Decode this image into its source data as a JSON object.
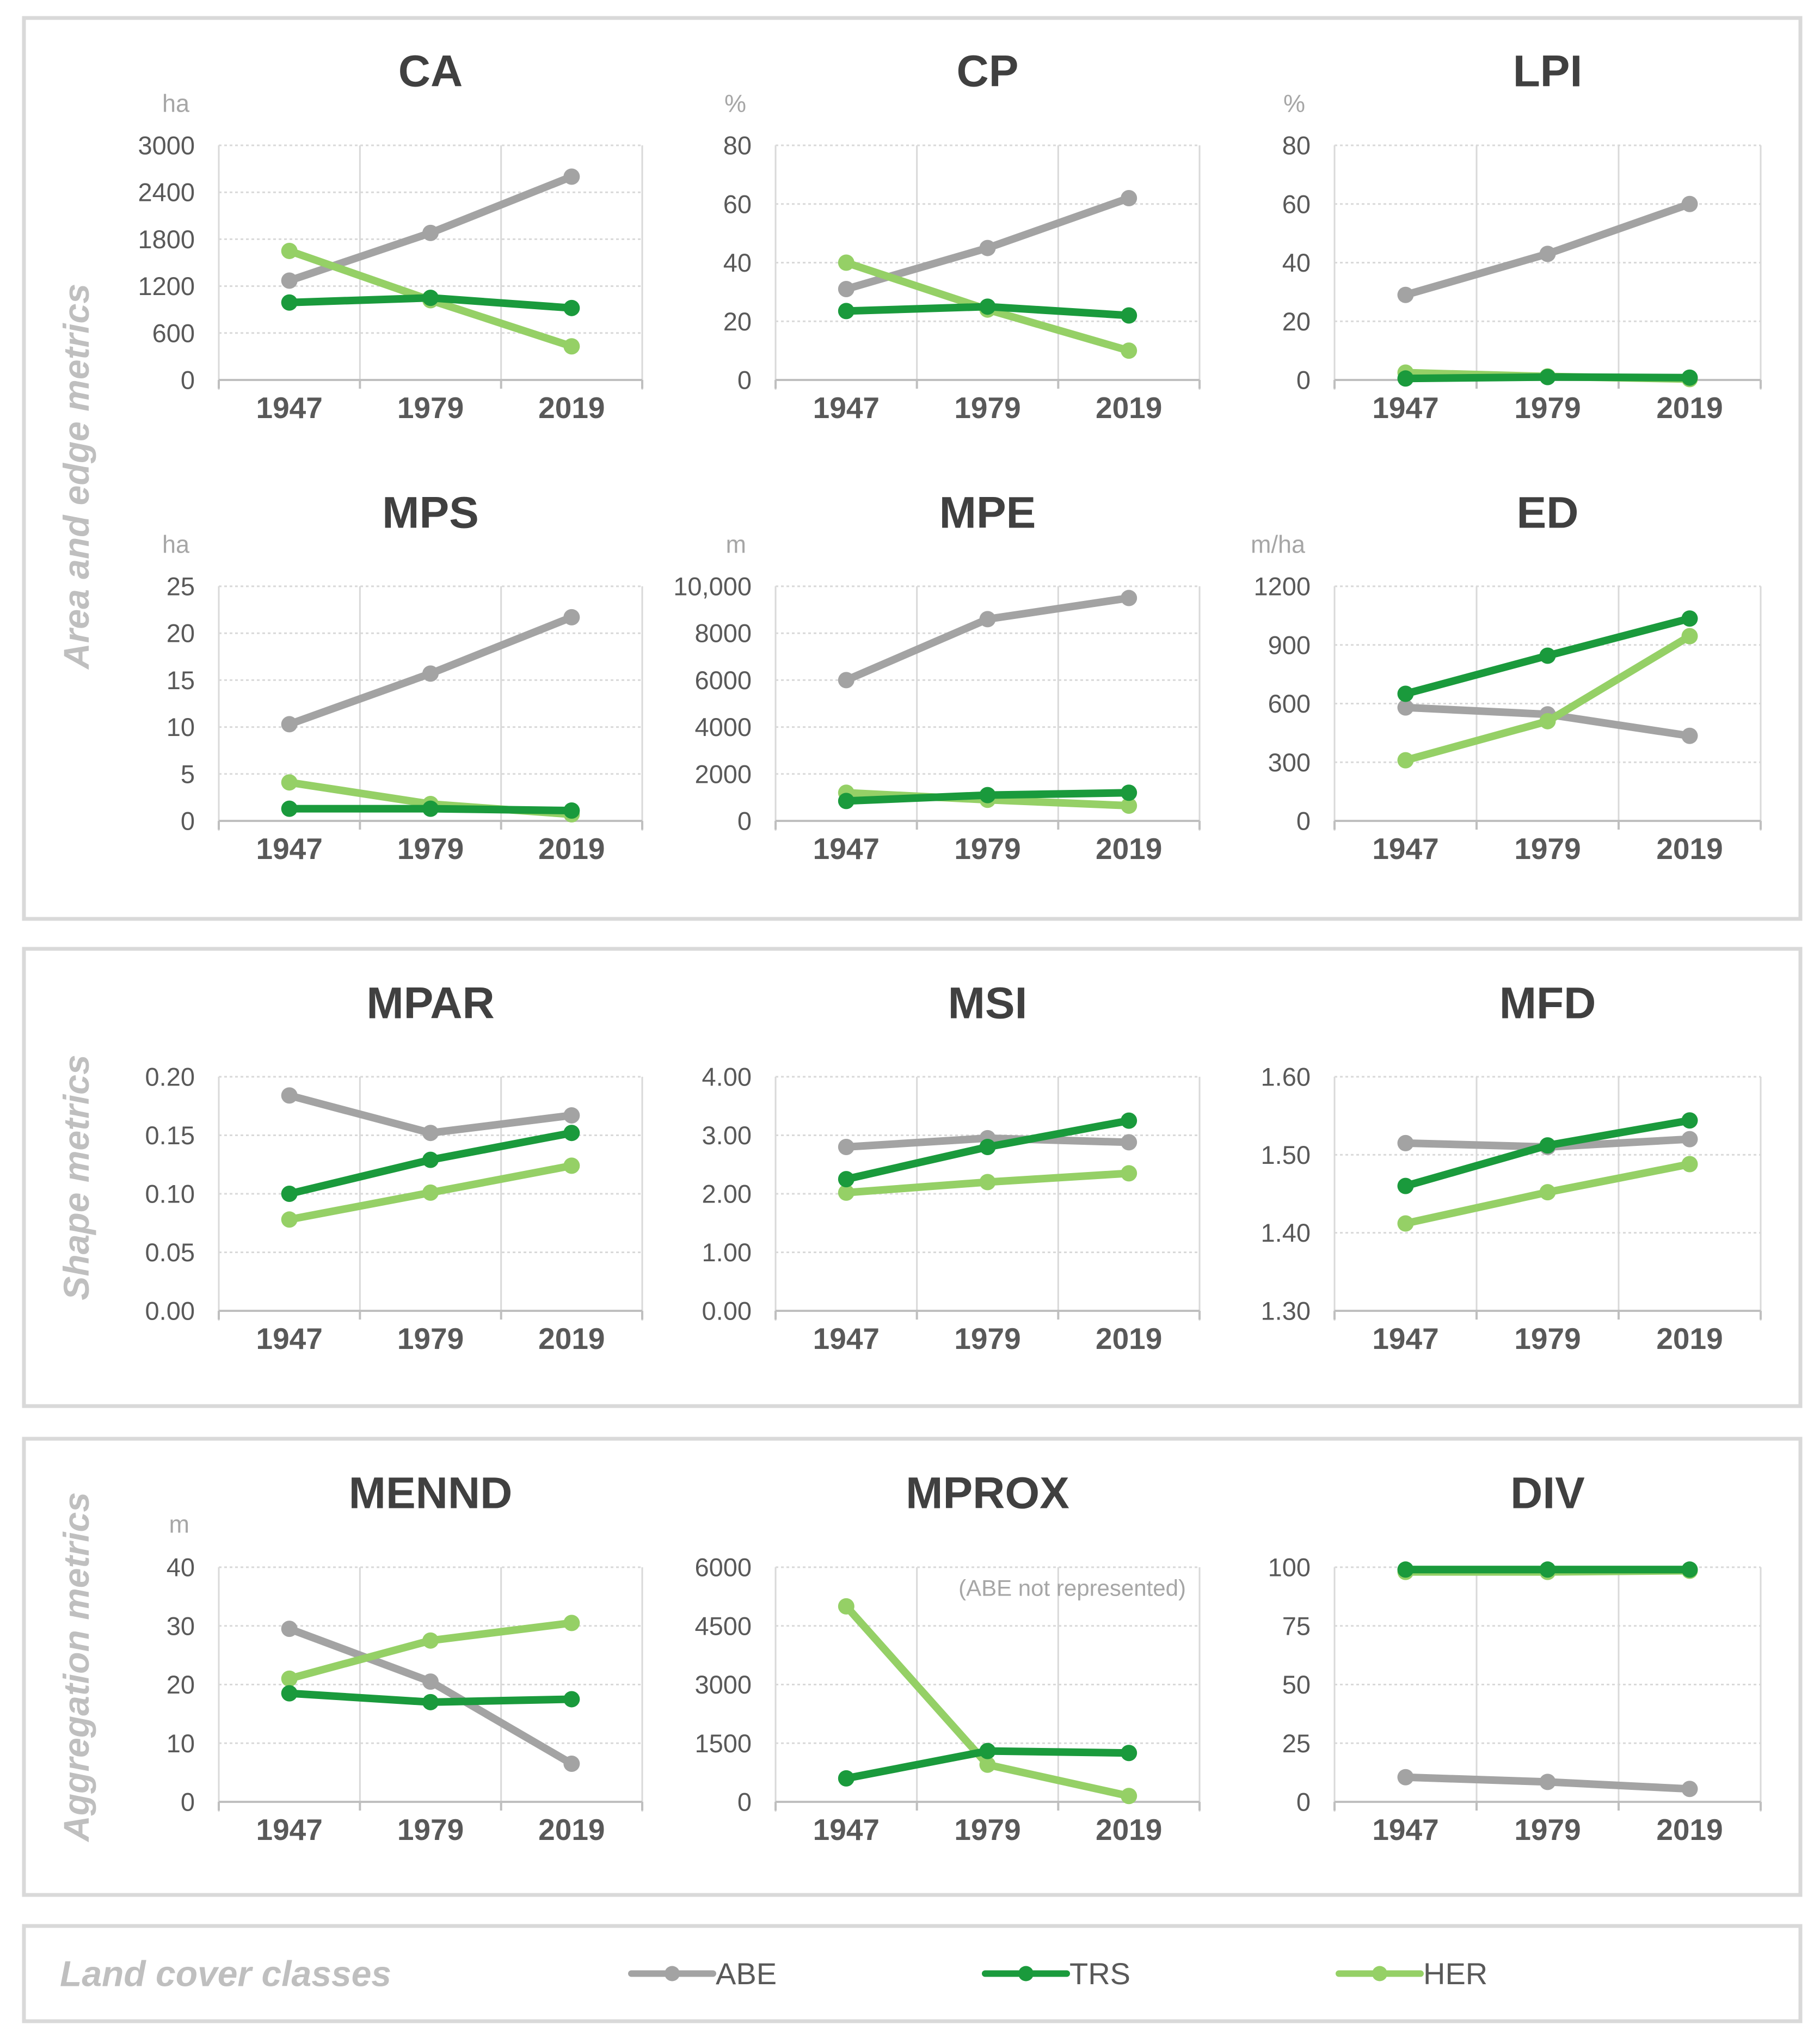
{
  "colors": {
    "ABE": "#a3a3a3",
    "TRS": "#1a9a3c",
    "HER": "#95d066",
    "grid": "#d9d9d9",
    "axis": "#bfbfbf",
    "text": "#595959",
    "title": "#404040",
    "unit": "#a6a6a6",
    "section": "#bfbfbf",
    "panel_border": "#d9d9d9"
  },
  "sections": [
    {
      "label": "Area and edge metrics"
    },
    {
      "label": "Shape metrics"
    },
    {
      "label": "Aggregation metrics"
    }
  ],
  "legend": {
    "title": "Land cover classes",
    "items": [
      {
        "key": "ABE",
        "label": "ABE"
      },
      {
        "key": "TRS",
        "label": "TRS"
      },
      {
        "key": "HER",
        "label": "HER"
      }
    ]
  },
  "chart_data": [
    {
      "type": "line",
      "title": "CA",
      "unit": "ha",
      "categories": [
        "1947",
        "1979",
        "2019"
      ],
      "ylim": [
        0,
        3000
      ],
      "yticks": [
        "0",
        "600",
        "1200",
        "1800",
        "2400",
        "3000"
      ],
      "series": [
        {
          "name": "ABE",
          "values": [
            1270,
            1880,
            2600
          ]
        },
        {
          "name": "TRS",
          "values": [
            990,
            1050,
            920
          ]
        },
        {
          "name": "HER",
          "values": [
            1650,
            1020,
            430
          ]
        }
      ]
    },
    {
      "type": "line",
      "title": "CP",
      "unit": "%",
      "categories": [
        "1947",
        "1979",
        "2019"
      ],
      "ylim": [
        0,
        80
      ],
      "yticks": [
        "0",
        "20",
        "40",
        "60",
        "80"
      ],
      "series": [
        {
          "name": "ABE",
          "values": [
            31,
            45,
            62
          ]
        },
        {
          "name": "TRS",
          "values": [
            23.5,
            25,
            22
          ]
        },
        {
          "name": "HER",
          "values": [
            40,
            24,
            10
          ]
        }
      ]
    },
    {
      "type": "line",
      "title": "LPI",
      "unit": "%",
      "categories": [
        "1947",
        "1979",
        "2019"
      ],
      "ylim": [
        0,
        80
      ],
      "yticks": [
        "0",
        "20",
        "40",
        "60",
        "80"
      ],
      "series": [
        {
          "name": "ABE",
          "values": [
            29,
            43,
            60
          ]
        },
        {
          "name": "TRS",
          "values": [
            0.5,
            1,
            0.8
          ]
        },
        {
          "name": "HER",
          "values": [
            2.5,
            1.2,
            0.3
          ]
        }
      ]
    },
    {
      "type": "line",
      "title": "MPS",
      "unit": "ha",
      "categories": [
        "1947",
        "1979",
        "2019"
      ],
      "ylim": [
        0,
        25
      ],
      "yticks": [
        "0",
        "5",
        "10",
        "15",
        "20",
        "25"
      ],
      "series": [
        {
          "name": "ABE",
          "values": [
            10.3,
            15.7,
            21.7
          ]
        },
        {
          "name": "TRS",
          "values": [
            1.3,
            1.3,
            1.1
          ]
        },
        {
          "name": "HER",
          "values": [
            4.1,
            1.8,
            0.7
          ]
        }
      ]
    },
    {
      "type": "line",
      "title": "MPE",
      "unit": "m",
      "categories": [
        "1947",
        "1979",
        "2019"
      ],
      "ylim": [
        0,
        10000
      ],
      "yticks": [
        "0",
        "2000",
        "4000",
        "6000",
        "8000",
        "10,000"
      ],
      "series": [
        {
          "name": "ABE",
          "values": [
            6000,
            8600,
            9500
          ]
        },
        {
          "name": "TRS",
          "values": [
            850,
            1100,
            1200
          ]
        },
        {
          "name": "HER",
          "values": [
            1200,
            900,
            650
          ]
        }
      ]
    },
    {
      "type": "line",
      "title": "ED",
      "unit": "m/ha",
      "categories": [
        "1947",
        "1979",
        "2019"
      ],
      "ylim": [
        0,
        1200
      ],
      "yticks": [
        "0",
        "300",
        "600",
        "900",
        "1200"
      ],
      "series": [
        {
          "name": "ABE",
          "values": [
            580,
            545,
            435
          ]
        },
        {
          "name": "TRS",
          "values": [
            650,
            845,
            1035
          ]
        },
        {
          "name": "HER",
          "values": [
            310,
            510,
            945
          ]
        }
      ]
    },
    {
      "type": "line",
      "title": "MPAR",
      "unit": "",
      "categories": [
        "1947",
        "1979",
        "2019"
      ],
      "ylim": [
        0,
        0.2
      ],
      "yticks": [
        "0.00",
        "0.05",
        "0.10",
        "0.15",
        "0.20"
      ],
      "series": [
        {
          "name": "ABE",
          "values": [
            0.184,
            0.152,
            0.167
          ]
        },
        {
          "name": "TRS",
          "values": [
            0.1,
            0.129,
            0.152
          ]
        },
        {
          "name": "HER",
          "values": [
            0.078,
            0.101,
            0.124
          ]
        }
      ]
    },
    {
      "type": "line",
      "title": "MSI",
      "unit": "",
      "categories": [
        "1947",
        "1979",
        "2019"
      ],
      "ylim": [
        0,
        4
      ],
      "yticks": [
        "0.00",
        "1.00",
        "2.00",
        "3.00",
        "4.00"
      ],
      "series": [
        {
          "name": "ABE",
          "values": [
            2.8,
            2.95,
            2.88
          ]
        },
        {
          "name": "TRS",
          "values": [
            2.25,
            2.8,
            3.25
          ]
        },
        {
          "name": "HER",
          "values": [
            2.02,
            2.2,
            2.35
          ]
        }
      ]
    },
    {
      "type": "line",
      "title": "MFD",
      "unit": "",
      "categories": [
        "1947",
        "1979",
        "2019"
      ],
      "ylim": [
        1.3,
        1.6
      ],
      "yticks": [
        "1.30",
        "1.40",
        "1.50",
        "1.60"
      ],
      "series": [
        {
          "name": "ABE",
          "values": [
            1.515,
            1.51,
            1.52
          ]
        },
        {
          "name": "TRS",
          "values": [
            1.46,
            1.512,
            1.544
          ]
        },
        {
          "name": "HER",
          "values": [
            1.412,
            1.452,
            1.488
          ]
        }
      ]
    },
    {
      "type": "line",
      "title": "MENND",
      "unit": "m",
      "categories": [
        "1947",
        "1979",
        "2019"
      ],
      "ylim": [
        0,
        40
      ],
      "yticks": [
        "0",
        "10",
        "20",
        "30",
        "40"
      ],
      "series": [
        {
          "name": "ABE",
          "values": [
            29.5,
            20.5,
            6.5
          ]
        },
        {
          "name": "TRS",
          "values": [
            18.5,
            17,
            17.5
          ]
        },
        {
          "name": "HER",
          "values": [
            21,
            27.5,
            30.5
          ]
        }
      ]
    },
    {
      "type": "line",
      "title": "MPROX",
      "unit": "",
      "note": "(ABE not represented)",
      "categories": [
        "1947",
        "1979",
        "2019"
      ],
      "ylim": [
        0,
        6000
      ],
      "yticks": [
        "0",
        "1500",
        "3000",
        "4500",
        "6000"
      ],
      "series": [
        {
          "name": "TRS",
          "values": [
            600,
            1300,
            1250
          ]
        },
        {
          "name": "HER",
          "values": [
            5000,
            950,
            150
          ]
        }
      ]
    },
    {
      "type": "line",
      "title": "DIV",
      "unit": "",
      "categories": [
        "1947",
        "1979",
        "2019"
      ],
      "ylim": [
        0,
        100
      ],
      "yticks": [
        "0",
        "25",
        "50",
        "75",
        "100"
      ],
      "series": [
        {
          "name": "ABE",
          "values": [
            10.5,
            8.5,
            5.5
          ]
        },
        {
          "name": "TRS",
          "values": [
            99,
            99,
            99
          ]
        },
        {
          "name": "HER",
          "values": [
            98,
            98,
            98.5
          ]
        }
      ]
    }
  ]
}
